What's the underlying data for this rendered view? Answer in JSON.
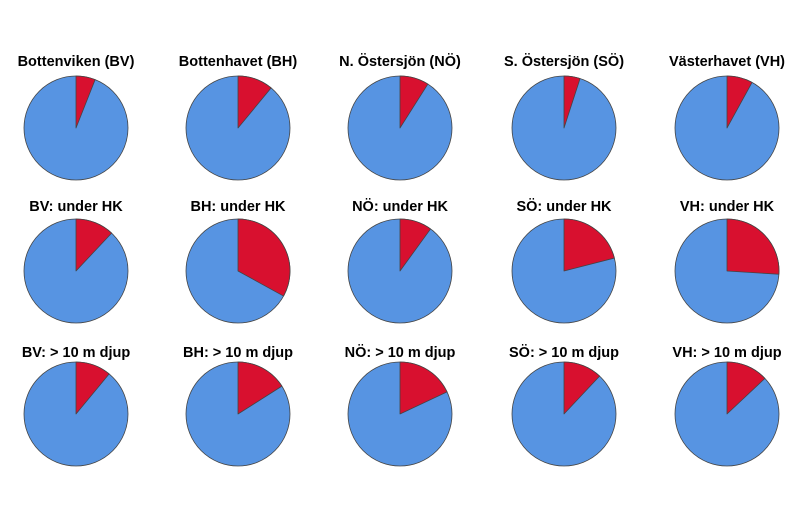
{
  "colors": {
    "major": "#5794e2",
    "minor": "#d8102f",
    "outline": "#444444"
  },
  "chart_data": [
    {
      "type": "pie",
      "title": "Bottenviken (BV)",
      "values": [
        94,
        6
      ]
    },
    {
      "type": "pie",
      "title": "Bottenhavet (BH)",
      "values": [
        89,
        11
      ]
    },
    {
      "type": "pie",
      "title": "N. Östersjön (NÖ)",
      "values": [
        91,
        9
      ]
    },
    {
      "type": "pie",
      "title": "S. Östersjön (SÖ)",
      "values": [
        95,
        5
      ]
    },
    {
      "type": "pie",
      "title": "Västerhavet (VH)",
      "values": [
        92,
        8
      ]
    },
    {
      "type": "pie",
      "title": "BV: under HK",
      "values": [
        88,
        12
      ]
    },
    {
      "type": "pie",
      "title": "BH: under HK",
      "values": [
        67,
        33
      ]
    },
    {
      "type": "pie",
      "title": "NÖ: under HK",
      "values": [
        90,
        10
      ]
    },
    {
      "type": "pie",
      "title": "SÖ: under HK",
      "values": [
        79,
        21
      ]
    },
    {
      "type": "pie",
      "title": "VH: under HK",
      "values": [
        74,
        26
      ]
    },
    {
      "type": "pie",
      "title": "BV: > 10 m djup",
      "values": [
        89,
        11
      ]
    },
    {
      "type": "pie",
      "title": "BH: > 10 m djup",
      "values": [
        84,
        16
      ]
    },
    {
      "type": "pie",
      "title": "NÖ: > 10 m djup",
      "values": [
        82,
        18
      ]
    },
    {
      "type": "pie",
      "title": "SÖ: > 10 m djup",
      "values": [
        88,
        12
      ]
    },
    {
      "type": "pie",
      "title": "VH: > 10 m djup",
      "values": [
        87,
        13
      ]
    }
  ]
}
